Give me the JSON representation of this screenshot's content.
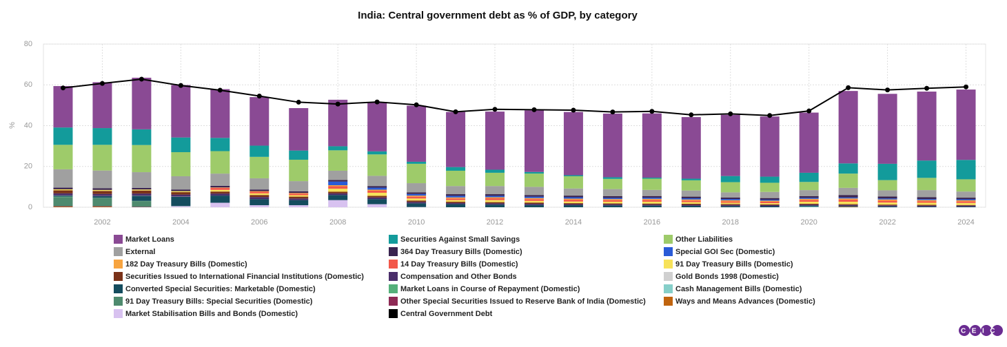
{
  "chart_data": {
    "type": "bar",
    "stacked": true,
    "title": "India: Central government debt as % of GDP, by category",
    "ylabel": "%",
    "logo": "CEIC",
    "x": [
      2001,
      2002,
      2003,
      2004,
      2005,
      2006,
      2007,
      2008,
      2009,
      2010,
      2011,
      2012,
      2013,
      2014,
      2015,
      2016,
      2017,
      2018,
      2019,
      2020,
      2021,
      2022,
      2023,
      2024
    ],
    "xlim": [
      2000.5,
      2024.5
    ],
    "xticks": [
      2002,
      2004,
      2006,
      2008,
      2010,
      2012,
      2014,
      2016,
      2018,
      2020,
      2022,
      2024
    ],
    "ylim": [
      0,
      80
    ],
    "yticks": [
      0,
      20,
      40,
      60,
      80
    ],
    "grid": true,
    "series": [
      {
        "name": "Market Loans",
        "color": "#8a4a94",
        "values": [
          20.3,
          22.5,
          25.3,
          25.7,
          23.9,
          23.8,
          20.8,
          22.8,
          24.2,
          27.5,
          27,
          28.5,
          30.2,
          31,
          31.2,
          31.5,
          30.2,
          30,
          29.5,
          29.5,
          35.5,
          34.3,
          33.8,
          34.5
        ]
      },
      {
        "name": "Securities Against Small Savings",
        "color": "#139b9b",
        "values": [
          8.5,
          8.2,
          7.7,
          7.2,
          6.5,
          5.5,
          4.5,
          2,
          1.5,
          1,
          1.8,
          1.5,
          0.8,
          0.5,
          0.8,
          0.5,
          0.8,
          3,
          3,
          4.5,
          5,
          8,
          8.5,
          9.5
        ]
      },
      {
        "name": "Other Liabilities",
        "color": "#9ecb6a",
        "values": [
          12,
          12.6,
          13.3,
          11.8,
          11,
          10.5,
          10.5,
          10,
          10.5,
          9.5,
          7.5,
          6.5,
          6.5,
          6,
          5,
          5.5,
          5,
          5,
          4.5,
          4,
          7,
          5,
          6,
          6
        ]
      },
      {
        "name": "External",
        "color": "#a0a0a0",
        "values": [
          9,
          8.7,
          7.7,
          6.5,
          6,
          5.5,
          5,
          4.5,
          5,
          4.5,
          4,
          4,
          4,
          3.5,
          3.5,
          3,
          3,
          2.5,
          3,
          3,
          3.5,
          3,
          3.5,
          3
        ]
      },
      {
        "name": "364 Day Treasury Bills (Domestic)",
        "color": "#3a2450",
        "values": [
          0.8,
          0.8,
          0.8,
          0.8,
          0.8,
          0.8,
          0.8,
          0.8,
          0.8,
          0.8,
          0.8,
          0.8,
          0.8,
          0.8,
          0.8,
          0.8,
          0.8,
          0.8,
          0.8,
          0.8,
          1.2,
          1,
          0.9,
          0.8
        ]
      },
      {
        "name": "Special GOI Sec (Domestic)",
        "color": "#2a5bd7",
        "values": [
          0,
          0,
          0,
          0,
          0,
          0,
          0,
          1.8,
          1,
          0.8,
          0.8,
          0.7,
          0.7,
          0.7,
          0.6,
          0.6,
          0.6,
          0.6,
          0.5,
          0.5,
          0.5,
          0.5,
          0.5,
          0.5
        ]
      },
      {
        "name": "182 Day Treasury Bills (Domestic)",
        "color": "#f7a440",
        "values": [
          0,
          0,
          0,
          0,
          0.2,
          0.3,
          0.3,
          0.5,
          0.5,
          0.5,
          0.5,
          0.5,
          0.5,
          0.5,
          0.5,
          0.5,
          0.5,
          0.5,
          0.5,
          0.5,
          0.6,
          0.6,
          0.5,
          0.5
        ]
      },
      {
        "name": "14 Day Treasury Bills (Domestic)",
        "color": "#f2584a",
        "values": [
          0,
          0,
          0,
          0,
          1,
          0.8,
          0.8,
          1.2,
          1,
          0.9,
          0.8,
          0.9,
          0.9,
          0.9,
          0.8,
          0.9,
          0.8,
          0.7,
          0.7,
          0.9,
          1,
          0.9,
          0.8,
          0.8
        ]
      },
      {
        "name": "91 Day Treasury Bills (Domestic)",
        "color": "#f7e25a",
        "values": [
          0.5,
          0.5,
          0.5,
          0.5,
          0.8,
          0.8,
          0.7,
          1.5,
          1.5,
          1,
          0.8,
          1,
          0.8,
          0.8,
          0.8,
          0.9,
          0.8,
          0.6,
          0.6,
          1,
          1.2,
          1,
          1,
          1
        ]
      },
      {
        "name": "Securities Issued to International Financial Institutions (Domestic)",
        "color": "#7a3219",
        "values": [
          1.5,
          1.5,
          1.5,
          1.2,
          1,
          1,
          0.9,
          0.8,
          0.8,
          0.7,
          0.6,
          0.6,
          0.6,
          0.5,
          0.5,
          0.5,
          0.5,
          0.5,
          0.4,
          0.4,
          0.4,
          0.4,
          0.4,
          0.3
        ]
      },
      {
        "name": "Compensation and Other Bonds",
        "color": "#4a2e6a",
        "values": [
          1,
          1,
          1,
          1,
          1,
          1,
          0.8,
          0.8,
          0.8,
          0.7,
          0.6,
          0.6,
          0.6,
          0.5,
          0.5,
          0.5,
          0.5,
          0.5,
          0.5,
          0.5,
          0.5,
          0.5,
          0.5,
          0.5
        ]
      },
      {
        "name": "Gold Bonds 1998 (Domestic)",
        "color": "#d0d0d0",
        "values": [
          0.1,
          0.1,
          0.1,
          0.1,
          0,
          0,
          0,
          0,
          0,
          0,
          0,
          0,
          0,
          0,
          0,
          0,
          0,
          0,
          0,
          0,
          0,
          0,
          0,
          0
        ]
      },
      {
        "name": "Converted Special Securities: Marketable (Domestic)",
        "color": "#144c5e",
        "values": [
          0.5,
          0.8,
          2.5,
          4.5,
          3.5,
          3,
          2.5,
          2.5,
          2.5,
          1.8,
          1.5,
          1.3,
          1.1,
          1,
          0.9,
          0.8,
          0.7,
          0.6,
          0.5,
          0.5,
          0.4,
          0.4,
          0.3,
          0.3
        ]
      },
      {
        "name": "Market Loans in Course of Repayment (Domestic)",
        "color": "#55b07a",
        "values": [
          0.2,
          0.1,
          0.1,
          0.1,
          0,
          0,
          0,
          0,
          0,
          0,
          0,
          0,
          0,
          0,
          0,
          0,
          0,
          0,
          0,
          0,
          0,
          0,
          0,
          0
        ]
      },
      {
        "name": "Cash Management Bills (Domestic)",
        "color": "#86cfc9",
        "values": [
          0,
          0,
          0,
          0,
          0,
          0,
          0,
          0,
          0,
          0,
          0,
          0,
          0,
          0,
          0,
          0,
          0,
          0,
          0,
          0.3,
          0,
          0,
          0,
          0
        ]
      },
      {
        "name": "91 Day Treasury Bills: Special Securities (Domestic)",
        "color": "#4e8a6e",
        "values": [
          4.5,
          4,
          2.8,
          0,
          0,
          0,
          0,
          0,
          0,
          0,
          0,
          0,
          0,
          0,
          0,
          0,
          0,
          0,
          0,
          0,
          0,
          0,
          0,
          0
        ]
      },
      {
        "name": "Other Special Securities Issued to Reserve Bank of India (Domestic)",
        "color": "#8e2a55",
        "values": [
          0.2,
          0.2,
          0.2,
          0,
          0,
          0,
          0,
          0,
          0,
          0,
          0,
          0,
          0,
          0,
          0,
          0,
          0,
          0,
          0,
          0,
          0,
          0,
          0,
          0
        ]
      },
      {
        "name": "Ways and Means Advances (Domestic)",
        "color": "#c0640e",
        "values": [
          0.3,
          0.3,
          0,
          0,
          0,
          0,
          0,
          0,
          0,
          0,
          0,
          0,
          0,
          0,
          0,
          0,
          0,
          0,
          0,
          0,
          0.2,
          0,
          0,
          0
        ]
      },
      {
        "name": "Market Stabilisation Bills and Bonds (Domestic)",
        "color": "#d8c2f0",
        "values": [
          0,
          0,
          0,
          0.5,
          2.2,
          1,
          1,
          3.5,
          1.5,
          0.1,
          0,
          0,
          0,
          0,
          0,
          0,
          0,
          0,
          0,
          0,
          0,
          0,
          0,
          0
        ]
      },
      {
        "name": "Central Government Debt",
        "color": "#000000",
        "type": "line",
        "values": [
          58.5,
          60.7,
          62.8,
          59.7,
          57.4,
          54.5,
          51.5,
          50.6,
          51.6,
          50.2,
          46.8,
          48,
          47.8,
          47.6,
          46.7,
          47,
          45.3,
          45.8,
          45,
          47.2,
          58.6,
          57.5,
          58.3,
          59
        ]
      }
    ]
  }
}
